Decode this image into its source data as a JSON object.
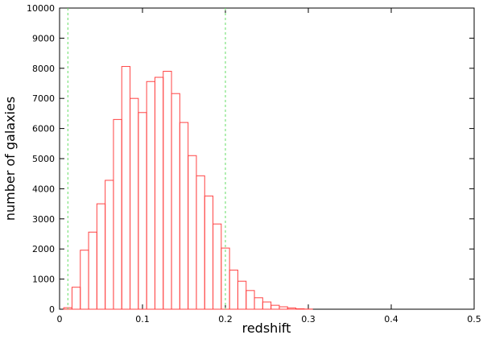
{
  "chart_data": {
    "type": "histogram",
    "xlabel": "redshift",
    "ylabel": "number of galaxies",
    "bins": [
      0.005,
      0.015,
      0.025,
      0.035,
      0.045,
      0.055,
      0.065,
      0.075,
      0.085,
      0.095,
      0.105,
      0.115,
      0.125,
      0.135,
      0.145,
      0.155,
      0.165,
      0.175,
      0.185,
      0.195,
      0.205,
      0.215,
      0.225,
      0.235,
      0.245,
      0.255,
      0.265,
      0.275,
      0.285,
      0.295,
      0.305
    ],
    "values": [
      50,
      730,
      1960,
      2560,
      3500,
      4280,
      6300,
      8060,
      7000,
      6530,
      7560,
      7700,
      7900,
      7160,
      6200,
      5100,
      4430,
      3760,
      2830,
      2030,
      1300,
      930,
      620,
      380,
      240,
      130,
      80,
      40,
      15,
      5
    ],
    "color": "#ff4444",
    "vlines": [
      0.01,
      0.2
    ],
    "vline_color": "#66dd66",
    "xlim": [
      0,
      0.5
    ],
    "xticks": [
      0,
      0.1,
      0.2,
      0.3,
      0.4,
      0.5
    ],
    "ylim": [
      0,
      10000
    ],
    "yticks": [
      0,
      1000,
      2000,
      3000,
      4000,
      5000,
      6000,
      7000,
      8000,
      9000,
      10000
    ]
  }
}
